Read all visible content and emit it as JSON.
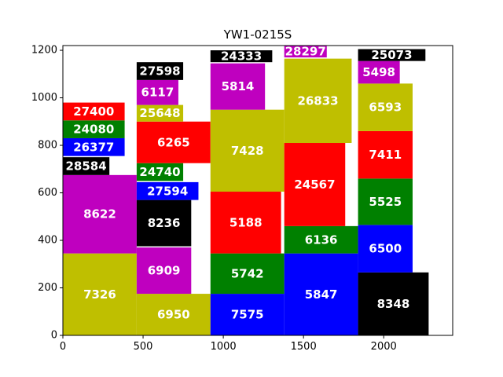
{
  "chart_data": {
    "type": "bar",
    "title": "YW1-0215S",
    "xlabel": "",
    "ylabel": "",
    "xlim": [
      0,
      2430
    ],
    "ylim": [
      0,
      1220
    ],
    "xticks": [
      0,
      500,
      1000,
      1500,
      2000
    ],
    "yticks": [
      0,
      200,
      400,
      600,
      800,
      1000,
      1200
    ],
    "grid": false,
    "colors": {
      "y": "#bfbf00",
      "m": "#bf00bf",
      "g": "#008000",
      "b": "#0000ff",
      "r": "#ff0000",
      "k": "#000000"
    },
    "rects": [
      {
        "label": "7326",
        "x": 0,
        "y": 0,
        "w": 460,
        "h": 345,
        "color": "y"
      },
      {
        "label": "8622",
        "x": 0,
        "y": 345,
        "w": 460,
        "h": 330,
        "color": "m"
      },
      {
        "label": "28584",
        "x": 0,
        "y": 675,
        "w": 290,
        "h": 75,
        "color": "k"
      },
      {
        "label": "26377",
        "x": 0,
        "y": 755,
        "w": 385,
        "h": 75,
        "color": "b"
      },
      {
        "label": "24080",
        "x": 0,
        "y": 830,
        "w": 385,
        "h": 75,
        "color": "g"
      },
      {
        "label": "27400",
        "x": 0,
        "y": 905,
        "w": 385,
        "h": 75,
        "color": "r"
      },
      {
        "label": "6950",
        "x": 460,
        "y": 0,
        "w": 460,
        "h": 175,
        "color": "y"
      },
      {
        "label": "6909",
        "x": 460,
        "y": 175,
        "w": 340,
        "h": 195,
        "color": "m"
      },
      {
        "label": "8236",
        "x": 460,
        "y": 375,
        "w": 340,
        "h": 195,
        "color": "k"
      },
      {
        "label": "27594",
        "x": 460,
        "y": 570,
        "w": 385,
        "h": 75,
        "color": "b"
      },
      {
        "label": "24740",
        "x": 460,
        "y": 650,
        "w": 290,
        "h": 75,
        "color": "g"
      },
      {
        "label": "6265",
        "x": 460,
        "y": 725,
        "w": 460,
        "h": 175,
        "color": "r"
      },
      {
        "label": "25648",
        "x": 460,
        "y": 900,
        "w": 290,
        "h": 70,
        "color": "y"
      },
      {
        "label": "6117",
        "x": 460,
        "y": 970,
        "w": 260,
        "h": 105,
        "color": "m"
      },
      {
        "label": "27598",
        "x": 460,
        "y": 1075,
        "w": 290,
        "h": 75,
        "color": "k"
      },
      {
        "label": "7575",
        "x": 920,
        "y": 0,
        "w": 460,
        "h": 175,
        "color": "b"
      },
      {
        "label": "5742",
        "x": 920,
        "y": 175,
        "w": 460,
        "h": 170,
        "color": "g"
      },
      {
        "label": "5188",
        "x": 920,
        "y": 345,
        "w": 440,
        "h": 260,
        "color": "r"
      },
      {
        "label": "7428",
        "x": 920,
        "y": 605,
        "w": 460,
        "h": 345,
        "color": "y"
      },
      {
        "label": "5814",
        "x": 920,
        "y": 950,
        "w": 340,
        "h": 195,
        "color": "m"
      },
      {
        "label": "24333",
        "x": 920,
        "y": 1150,
        "w": 385,
        "h": 50,
        "color": "k"
      },
      {
        "label": "5847",
        "x": 1380,
        "y": 0,
        "w": 460,
        "h": 345,
        "color": "b"
      },
      {
        "label": "6136",
        "x": 1380,
        "y": 345,
        "w": 460,
        "h": 115,
        "color": "g"
      },
      {
        "label": "24567",
        "x": 1380,
        "y": 460,
        "w": 380,
        "h": 350,
        "color": "r"
      },
      {
        "label": "26833",
        "x": 1380,
        "y": 810,
        "w": 420,
        "h": 355,
        "color": "y"
      },
      {
        "label": "28297",
        "x": 1380,
        "y": 1170,
        "w": 265,
        "h": 50,
        "color": "m"
      },
      {
        "label": "8348",
        "x": 1840,
        "y": 0,
        "w": 440,
        "h": 265,
        "color": "k"
      },
      {
        "label": "6500",
        "x": 1840,
        "y": 265,
        "w": 340,
        "h": 200,
        "color": "b"
      },
      {
        "label": "5525",
        "x": 1840,
        "y": 465,
        "w": 340,
        "h": 195,
        "color": "g"
      },
      {
        "label": "7411",
        "x": 1840,
        "y": 660,
        "w": 340,
        "h": 200,
        "color": "r"
      },
      {
        "label": "6593",
        "x": 1840,
        "y": 860,
        "w": 340,
        "h": 200,
        "color": "y"
      },
      {
        "label": "5498",
        "x": 1840,
        "y": 1060,
        "w": 260,
        "h": 95,
        "color": "m"
      },
      {
        "label": "25073",
        "x": 1840,
        "y": 1155,
        "w": 420,
        "h": 50,
        "color": "k"
      }
    ]
  }
}
